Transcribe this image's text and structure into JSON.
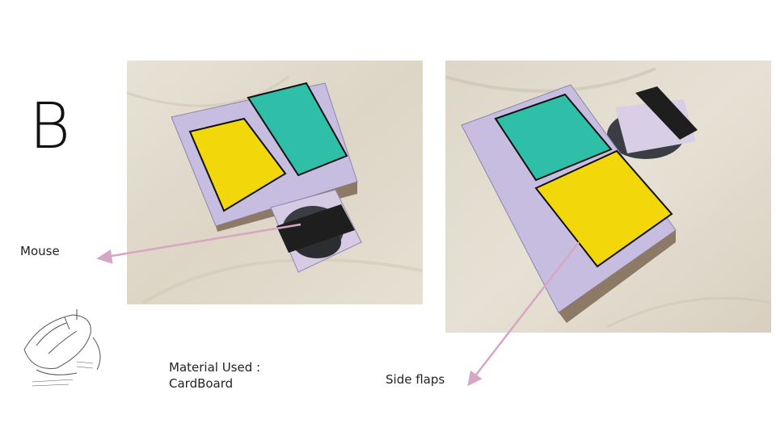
{
  "slide": {
    "section_letter": "B",
    "mouse_label": "Mouse",
    "material_line1": "Material Used :",
    "material_line2": "CardBoard",
    "side_flaps_label": "Side flaps"
  },
  "colors": {
    "arrow": "#d6a6c4",
    "cardboard": "#c9bfe0",
    "yellow_panel": "#f2d80a",
    "teal_panel": "#2fbfa8",
    "strap": "#1e1e1e",
    "background_marble": "#e4ddd0"
  },
  "images": {
    "left_photo": "cardboard-mouse-case-top-view",
    "right_photo": "cardboard-mouse-case-angled-view",
    "sketch": "mouse-sketch-drawing"
  }
}
